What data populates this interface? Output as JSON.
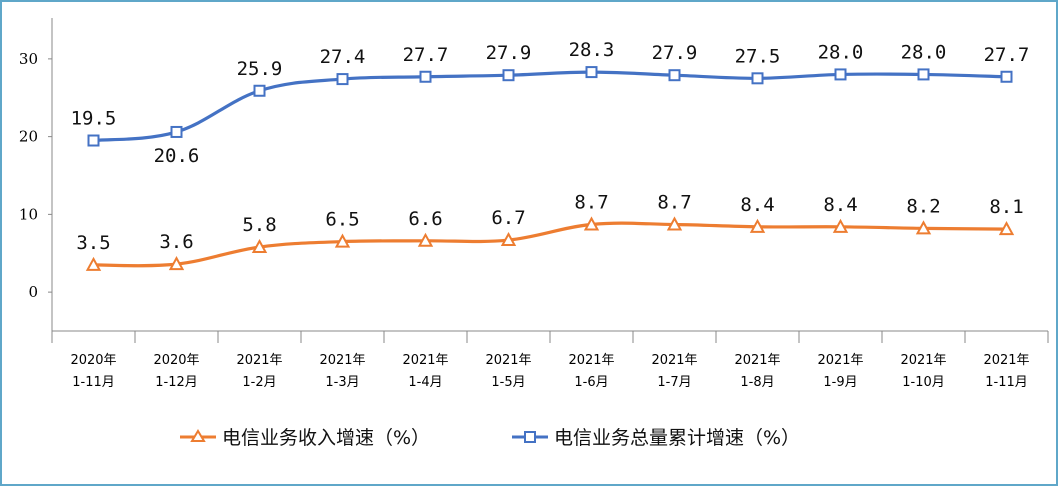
{
  "chart_data": {
    "type": "line",
    "categories": [
      [
        "2020年",
        "1-11月"
      ],
      [
        "2020年",
        "1-12月"
      ],
      [
        "2021年",
        "1-2月"
      ],
      [
        "2021年",
        "1-3月"
      ],
      [
        "2021年",
        "1-4月"
      ],
      [
        "2021年",
        "1-5月"
      ],
      [
        "2021年",
        "1-6月"
      ],
      [
        "2021年",
        "1-7月"
      ],
      [
        "2021年",
        "1-8月"
      ],
      [
        "2021年",
        "1-9月"
      ],
      [
        "2021年",
        "1-10月"
      ],
      [
        "2021年",
        "1-11月"
      ]
    ],
    "series": [
      {
        "name": "电信业务收入增速（%）",
        "color": "#ed7d31",
        "marker": "triangle",
        "values": [
          3.5,
          3.6,
          5.8,
          6.5,
          6.6,
          6.7,
          8.7,
          8.7,
          8.4,
          8.4,
          8.2,
          8.1
        ],
        "labels": [
          "3.5",
          "3.6",
          "5.8",
          "6.5",
          "6.6",
          "6.7",
          "8.7",
          "8.7",
          "8.4",
          "8.4",
          "8.2",
          "8.1"
        ]
      },
      {
        "name": "电信业务总量累计增速（%）",
        "color": "#4472c4",
        "marker": "square",
        "values": [
          19.5,
          20.6,
          25.9,
          27.4,
          27.7,
          27.9,
          28.3,
          27.9,
          27.5,
          28.0,
          28.0,
          27.7
        ],
        "labels": [
          "19.5",
          "20.6",
          "25.9",
          "27.4",
          "27.7",
          "27.9",
          "28.3",
          "27.9",
          "27.5",
          "28.0",
          "28.0",
          "27.7"
        ]
      }
    ],
    "yticks": [
      "0",
      "10",
      "20",
      "30"
    ],
    "ylim": [
      -5,
      35
    ],
    "grid": false,
    "legend_position": "bottom"
  }
}
